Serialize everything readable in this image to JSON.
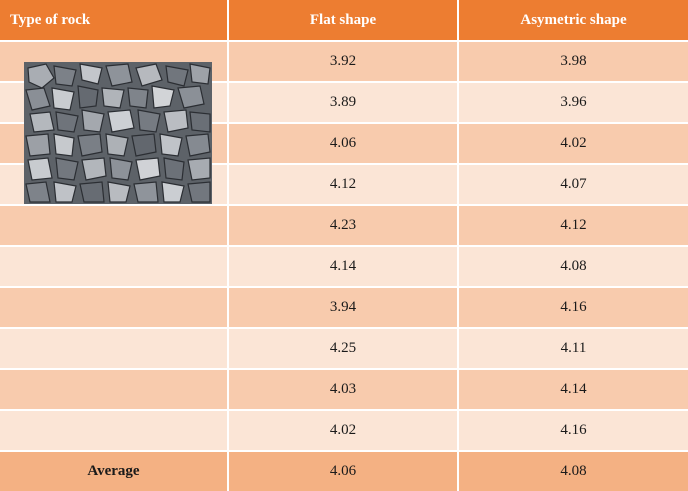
{
  "header": {
    "col1": "Type of rock",
    "col2": "Flat shape",
    "col3": "Asymetric shape"
  },
  "rows": [
    {
      "flat": "3.92",
      "asym": "3.98"
    },
    {
      "flat": "3.89",
      "asym": "3.96"
    },
    {
      "flat": "4.06",
      "asym": "4.02"
    },
    {
      "flat": "4.12",
      "asym": "4.07"
    },
    {
      "flat": "4.23",
      "asym": "4.12"
    },
    {
      "flat": "4.14",
      "asym": "4.08"
    },
    {
      "flat": "3.94",
      "asym": "4.16"
    },
    {
      "flat": "4.25",
      "asym": "4.11"
    },
    {
      "flat": "4.03",
      "asym": "4.14"
    },
    {
      "flat": "4.02",
      "asym": "4.16"
    }
  ],
  "average": {
    "label": "Average",
    "flat": "4.06",
    "asym": "4.08"
  },
  "colors": {
    "header": "#ed7d31",
    "band_dark": "#f8cbad",
    "band_light": "#fbe5d6",
    "average_row": "#f4b183"
  }
}
